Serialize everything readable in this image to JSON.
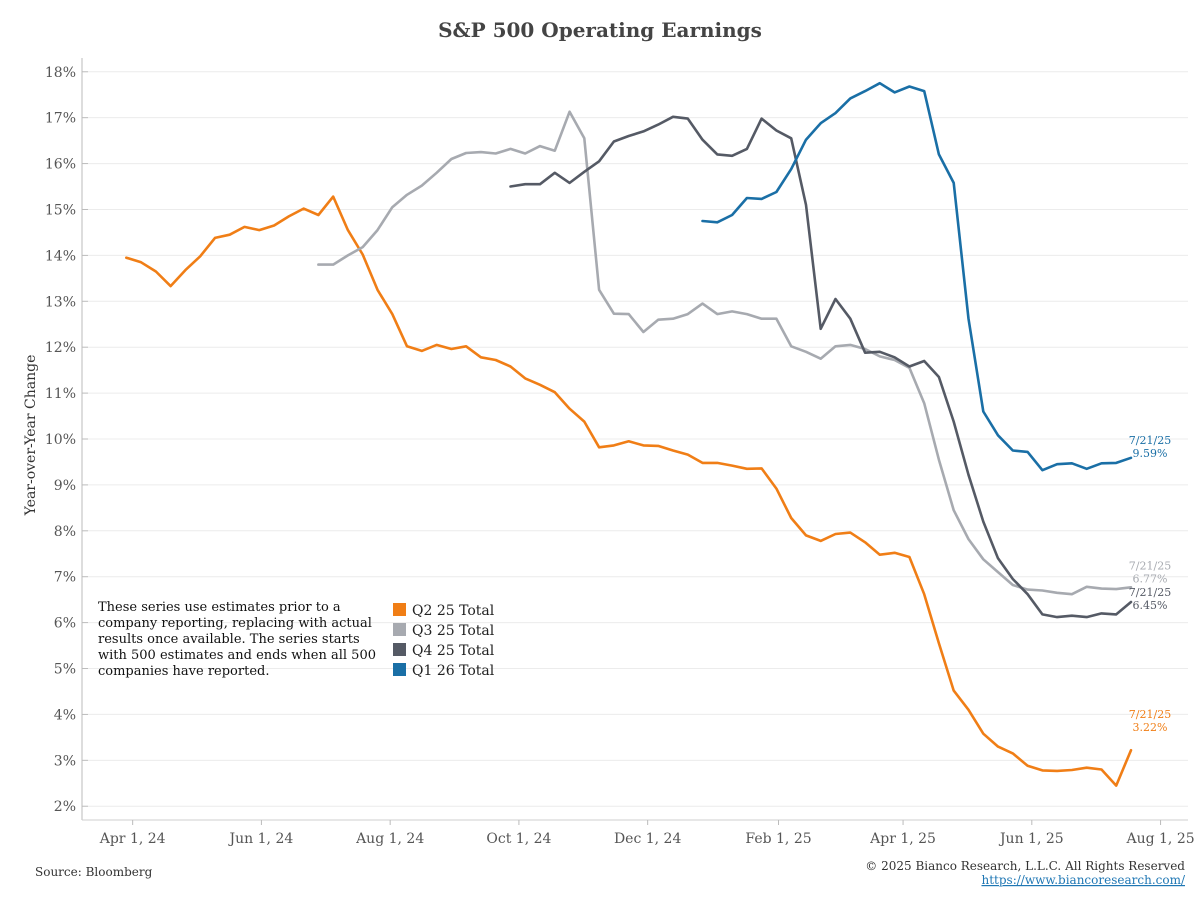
{
  "title": "S&P 500 Operating Earnings",
  "note_lines": [
    "These series use estimates prior to a",
    "company reporting, replacing with actual",
    "results once available. The series starts",
    "with 500 estimates and ends when all 500",
    "companies have reported."
  ],
  "source": "Source: Bloomberg",
  "copyright": "© 2025 Bianco Research, L.L.C. All Rights Reserved",
  "link": "https://www.biancoresearch.com/",
  "chart_data": {
    "type": "line",
    "title": "S&P 500 Operating Earnings",
    "xlabel": "",
    "ylabel": "Year-over-Year Change",
    "ylim": [
      1.7,
      18.3
    ],
    "xlim": [
      "2024-03-08",
      "2025-08-14"
    ],
    "y_ticks": [
      "2%",
      "3%",
      "4%",
      "5%",
      "6%",
      "7%",
      "8%",
      "9%",
      "10%",
      "11%",
      "12%",
      "13%",
      "14%",
      "15%",
      "16%",
      "17%",
      "18%"
    ],
    "x_ticks": [
      {
        "date": "2024-04-01",
        "label": "Apr 1, 24"
      },
      {
        "date": "2024-06-01",
        "label": "Jun 1, 24"
      },
      {
        "date": "2024-08-01",
        "label": "Aug 1, 24"
      },
      {
        "date": "2024-10-01",
        "label": "Oct 1, 24"
      },
      {
        "date": "2024-12-01",
        "label": "Dec 1, 24"
      },
      {
        "date": "2025-02-01",
        "label": "Feb 1, 25"
      },
      {
        "date": "2025-04-01",
        "label": "Apr 1, 25"
      },
      {
        "date": "2025-06-01",
        "label": "Jun 1, 25"
      },
      {
        "date": "2025-08-01",
        "label": "Aug 1, 25"
      }
    ],
    "grid": true,
    "legend_position": "bottom-left",
    "series": [
      {
        "name": "Q2 25 Total",
        "color": "#F07E16",
        "end_date": "7/21/25",
        "end_value": "3.22%",
        "points": [
          [
            "2024-03-29",
            13.95
          ],
          [
            "2024-04-05",
            13.85
          ],
          [
            "2024-04-12",
            13.65
          ],
          [
            "2024-04-19",
            13.33
          ],
          [
            "2024-04-26",
            13.68
          ],
          [
            "2024-05-03",
            13.98
          ],
          [
            "2024-05-10",
            14.38
          ],
          [
            "2024-05-17",
            14.45
          ],
          [
            "2024-05-24",
            14.62
          ],
          [
            "2024-05-31",
            14.55
          ],
          [
            "2024-06-07",
            14.65
          ],
          [
            "2024-06-14",
            14.85
          ],
          [
            "2024-06-21",
            15.02
          ],
          [
            "2024-06-28",
            14.88
          ],
          [
            "2024-07-05",
            15.28
          ],
          [
            "2024-07-12",
            14.55
          ],
          [
            "2024-07-19",
            14.02
          ],
          [
            "2024-07-26",
            13.25
          ],
          [
            "2024-08-02",
            12.72
          ],
          [
            "2024-08-09",
            12.02
          ],
          [
            "2024-08-16",
            11.92
          ],
          [
            "2024-08-23",
            12.05
          ],
          [
            "2024-08-30",
            11.96
          ],
          [
            "2024-09-06",
            12.02
          ],
          [
            "2024-09-13",
            11.78
          ],
          [
            "2024-09-20",
            11.72
          ],
          [
            "2024-09-27",
            11.58
          ],
          [
            "2024-10-04",
            11.32
          ],
          [
            "2024-10-11",
            11.18
          ],
          [
            "2024-10-18",
            11.02
          ],
          [
            "2024-10-25",
            10.66
          ],
          [
            "2024-11-01",
            10.38
          ],
          [
            "2024-11-08",
            9.82
          ],
          [
            "2024-11-15",
            9.86
          ],
          [
            "2024-11-22",
            9.95
          ],
          [
            "2024-11-29",
            9.86
          ],
          [
            "2024-12-06",
            9.85
          ],
          [
            "2024-12-13",
            9.75
          ],
          [
            "2024-12-20",
            9.66
          ],
          [
            "2024-12-27",
            9.48
          ],
          [
            "2025-01-03",
            9.48
          ],
          [
            "2025-01-10",
            9.42
          ],
          [
            "2025-01-17",
            9.35
          ],
          [
            "2025-01-24",
            9.36
          ],
          [
            "2025-01-31",
            8.92
          ],
          [
            "2025-02-07",
            8.28
          ],
          [
            "2025-02-14",
            7.9
          ],
          [
            "2025-02-21",
            7.78
          ],
          [
            "2025-02-28",
            7.93
          ],
          [
            "2025-03-07",
            7.96
          ],
          [
            "2025-03-14",
            7.75
          ],
          [
            "2025-03-21",
            7.48
          ],
          [
            "2025-03-28",
            7.52
          ],
          [
            "2025-04-04",
            7.43
          ],
          [
            "2025-04-11",
            6.62
          ],
          [
            "2025-04-18",
            5.55
          ],
          [
            "2025-04-25",
            4.52
          ],
          [
            "2025-05-02",
            4.1
          ],
          [
            "2025-05-09",
            3.58
          ],
          [
            "2025-05-16",
            3.3
          ],
          [
            "2025-05-23",
            3.15
          ],
          [
            "2025-05-30",
            2.88
          ],
          [
            "2025-06-06",
            2.78
          ],
          [
            "2025-06-13",
            2.77
          ],
          [
            "2025-06-20",
            2.79
          ],
          [
            "2025-06-27",
            2.84
          ],
          [
            "2025-07-04",
            2.8
          ],
          [
            "2025-07-11",
            2.45
          ],
          [
            "2025-07-18",
            3.22
          ]
        ]
      },
      {
        "name": "Q3 25 Total",
        "color": "#A7AAB0",
        "end_date": "7/21/25",
        "end_value": "6.77%",
        "points": [
          [
            "2024-06-28",
            13.8
          ],
          [
            "2024-07-05",
            13.8
          ],
          [
            "2024-07-12",
            14.0
          ],
          [
            "2024-07-19",
            14.18
          ],
          [
            "2024-07-26",
            14.55
          ],
          [
            "2024-08-02",
            15.05
          ],
          [
            "2024-08-09",
            15.32
          ],
          [
            "2024-08-16",
            15.52
          ],
          [
            "2024-08-23",
            15.8
          ],
          [
            "2024-08-30",
            16.1
          ],
          [
            "2024-09-06",
            16.23
          ],
          [
            "2024-09-13",
            16.25
          ],
          [
            "2024-09-20",
            16.22
          ],
          [
            "2024-09-27",
            16.32
          ],
          [
            "2024-10-04",
            16.22
          ],
          [
            "2024-10-11",
            16.38
          ],
          [
            "2024-10-18",
            16.28
          ],
          [
            "2024-10-25",
            17.13
          ],
          [
            "2024-11-01",
            16.55
          ],
          [
            "2024-11-08",
            13.25
          ],
          [
            "2024-11-15",
            12.73
          ],
          [
            "2024-11-22",
            12.72
          ],
          [
            "2024-11-29",
            12.33
          ],
          [
            "2024-12-06",
            12.6
          ],
          [
            "2024-12-13",
            12.62
          ],
          [
            "2024-12-20",
            12.72
          ],
          [
            "2024-12-27",
            12.95
          ],
          [
            "2025-01-03",
            12.72
          ],
          [
            "2025-01-10",
            12.78
          ],
          [
            "2025-01-17",
            12.72
          ],
          [
            "2025-01-24",
            12.62
          ],
          [
            "2025-01-31",
            12.62
          ],
          [
            "2025-02-07",
            12.02
          ],
          [
            "2025-02-14",
            11.9
          ],
          [
            "2025-02-21",
            11.75
          ],
          [
            "2025-02-28",
            12.02
          ],
          [
            "2025-03-07",
            12.05
          ],
          [
            "2025-03-14",
            11.96
          ],
          [
            "2025-03-21",
            11.8
          ],
          [
            "2025-03-28",
            11.72
          ],
          [
            "2025-04-04",
            11.55
          ],
          [
            "2025-04-11",
            10.78
          ],
          [
            "2025-04-18",
            9.55
          ],
          [
            "2025-04-25",
            8.45
          ],
          [
            "2025-05-02",
            7.82
          ],
          [
            "2025-05-09",
            7.38
          ],
          [
            "2025-05-16",
            7.1
          ],
          [
            "2025-05-23",
            6.82
          ],
          [
            "2025-05-30",
            6.72
          ],
          [
            "2025-06-06",
            6.7
          ],
          [
            "2025-06-13",
            6.65
          ],
          [
            "2025-06-20",
            6.62
          ],
          [
            "2025-06-27",
            6.78
          ],
          [
            "2025-07-04",
            6.74
          ],
          [
            "2025-07-11",
            6.73
          ],
          [
            "2025-07-18",
            6.77
          ]
        ]
      },
      {
        "name": "Q4 25 Total",
        "color": "#555A65",
        "end_date": "7/21/25",
        "end_value": "6.45%",
        "points": [
          [
            "2024-09-27",
            15.5
          ],
          [
            "2024-10-04",
            15.55
          ],
          [
            "2024-10-11",
            15.55
          ],
          [
            "2024-10-18",
            15.8
          ],
          [
            "2024-10-25",
            15.58
          ],
          [
            "2024-11-01",
            15.82
          ],
          [
            "2024-11-08",
            16.05
          ],
          [
            "2024-11-15",
            16.48
          ],
          [
            "2024-11-22",
            16.6
          ],
          [
            "2024-11-29",
            16.7
          ],
          [
            "2024-12-06",
            16.85
          ],
          [
            "2024-12-13",
            17.02
          ],
          [
            "2024-12-20",
            16.98
          ],
          [
            "2024-12-27",
            16.52
          ],
          [
            "2025-01-03",
            16.2
          ],
          [
            "2025-01-10",
            16.17
          ],
          [
            "2025-01-17",
            16.32
          ],
          [
            "2025-01-24",
            16.98
          ],
          [
            "2025-01-31",
            16.72
          ],
          [
            "2025-02-07",
            16.55
          ],
          [
            "2025-02-14",
            15.1
          ],
          [
            "2025-02-21",
            12.4
          ],
          [
            "2025-02-28",
            13.05
          ],
          [
            "2025-03-07",
            12.62
          ],
          [
            "2025-03-14",
            11.88
          ],
          [
            "2025-03-21",
            11.9
          ],
          [
            "2025-03-28",
            11.78
          ],
          [
            "2025-04-04",
            11.58
          ],
          [
            "2025-04-11",
            11.7
          ],
          [
            "2025-04-18",
            11.35
          ],
          [
            "2025-04-25",
            10.38
          ],
          [
            "2025-05-02",
            9.22
          ],
          [
            "2025-05-09",
            8.2
          ],
          [
            "2025-05-16",
            7.4
          ],
          [
            "2025-05-23",
            6.95
          ],
          [
            "2025-05-30",
            6.62
          ],
          [
            "2025-06-06",
            6.18
          ],
          [
            "2025-06-13",
            6.12
          ],
          [
            "2025-06-20",
            6.15
          ],
          [
            "2025-06-27",
            6.12
          ],
          [
            "2025-07-04",
            6.2
          ],
          [
            "2025-07-11",
            6.18
          ],
          [
            "2025-07-18",
            6.45
          ]
        ]
      },
      {
        "name": "Q1 26 Total",
        "color": "#1A6FA6",
        "end_date": "7/21/25",
        "end_value": "9.59%",
        "points": [
          [
            "2024-12-27",
            14.75
          ],
          [
            "2025-01-03",
            14.72
          ],
          [
            "2025-01-10",
            14.88
          ],
          [
            "2025-01-17",
            15.25
          ],
          [
            "2025-01-24",
            15.23
          ],
          [
            "2025-01-31",
            15.38
          ],
          [
            "2025-02-07",
            15.88
          ],
          [
            "2025-02-14",
            16.52
          ],
          [
            "2025-02-21",
            16.88
          ],
          [
            "2025-02-28",
            17.1
          ],
          [
            "2025-03-07",
            17.42
          ],
          [
            "2025-03-14",
            17.58
          ],
          [
            "2025-03-21",
            17.75
          ],
          [
            "2025-03-28",
            17.55
          ],
          [
            "2025-04-04",
            17.68
          ],
          [
            "2025-04-11",
            17.58
          ],
          [
            "2025-04-18",
            16.2
          ],
          [
            "2025-04-25",
            15.58
          ],
          [
            "2025-05-02",
            12.62
          ],
          [
            "2025-05-09",
            10.6
          ],
          [
            "2025-05-16",
            10.08
          ],
          [
            "2025-05-23",
            9.75
          ],
          [
            "2025-05-30",
            9.72
          ],
          [
            "2025-06-06",
            9.32
          ],
          [
            "2025-06-13",
            9.45
          ],
          [
            "2025-06-20",
            9.47
          ],
          [
            "2025-06-27",
            9.35
          ],
          [
            "2025-07-04",
            9.47
          ],
          [
            "2025-07-11",
            9.48
          ],
          [
            "2025-07-18",
            9.59
          ]
        ]
      }
    ]
  }
}
